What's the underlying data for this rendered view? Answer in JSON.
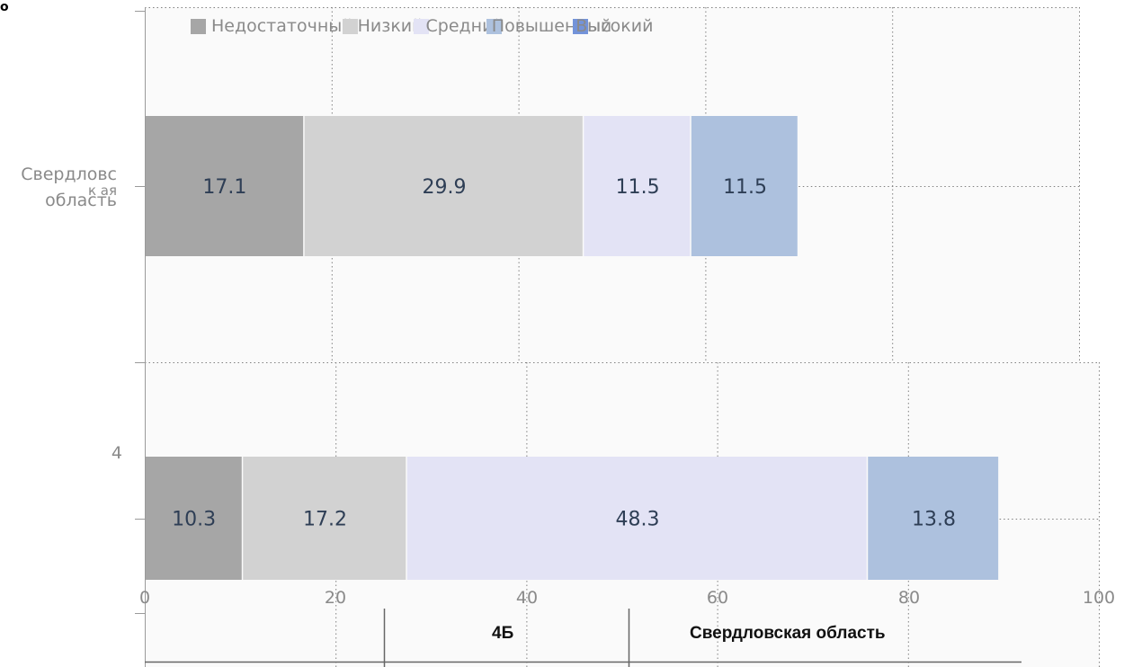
{
  "chart_data": {
    "type": "bar",
    "orientation": "horizontal",
    "stacked": true,
    "categories": [
      "Свердловская область",
      "4"
    ],
    "category_labels": [
      [
        "Свердловс",
        "к ая",
        "область"
      ],
      [
        "4"
      ]
    ],
    "series": [
      {
        "name": "Недостаточный",
        "values": [
          17.1,
          10.3
        ],
        "color": "#a6a6a6"
      },
      {
        "name": "Низкий",
        "values": [
          29.9,
          17.2
        ],
        "color": "#d2d2d2"
      },
      {
        "name": "Средний",
        "values": [
          11.5,
          48.3
        ],
        "color": "#e3e3f5"
      },
      {
        "name": "Повышенный",
        "values": [
          11.5,
          13.8
        ],
        "color": "#adc1de"
      },
      {
        "name": "Высокий",
        "values": [
          0,
          0
        ],
        "color": "#7393d9"
      }
    ],
    "xlim": [
      0,
      100
    ],
    "xticks": [
      "0",
      "20",
      "40",
      "60",
      "80",
      "100"
    ],
    "grid": true,
    "legend_position": "top"
  },
  "table_labels": [
    "4Б",
    "Свердловская  область"
  ],
  "corner_mark": "о"
}
